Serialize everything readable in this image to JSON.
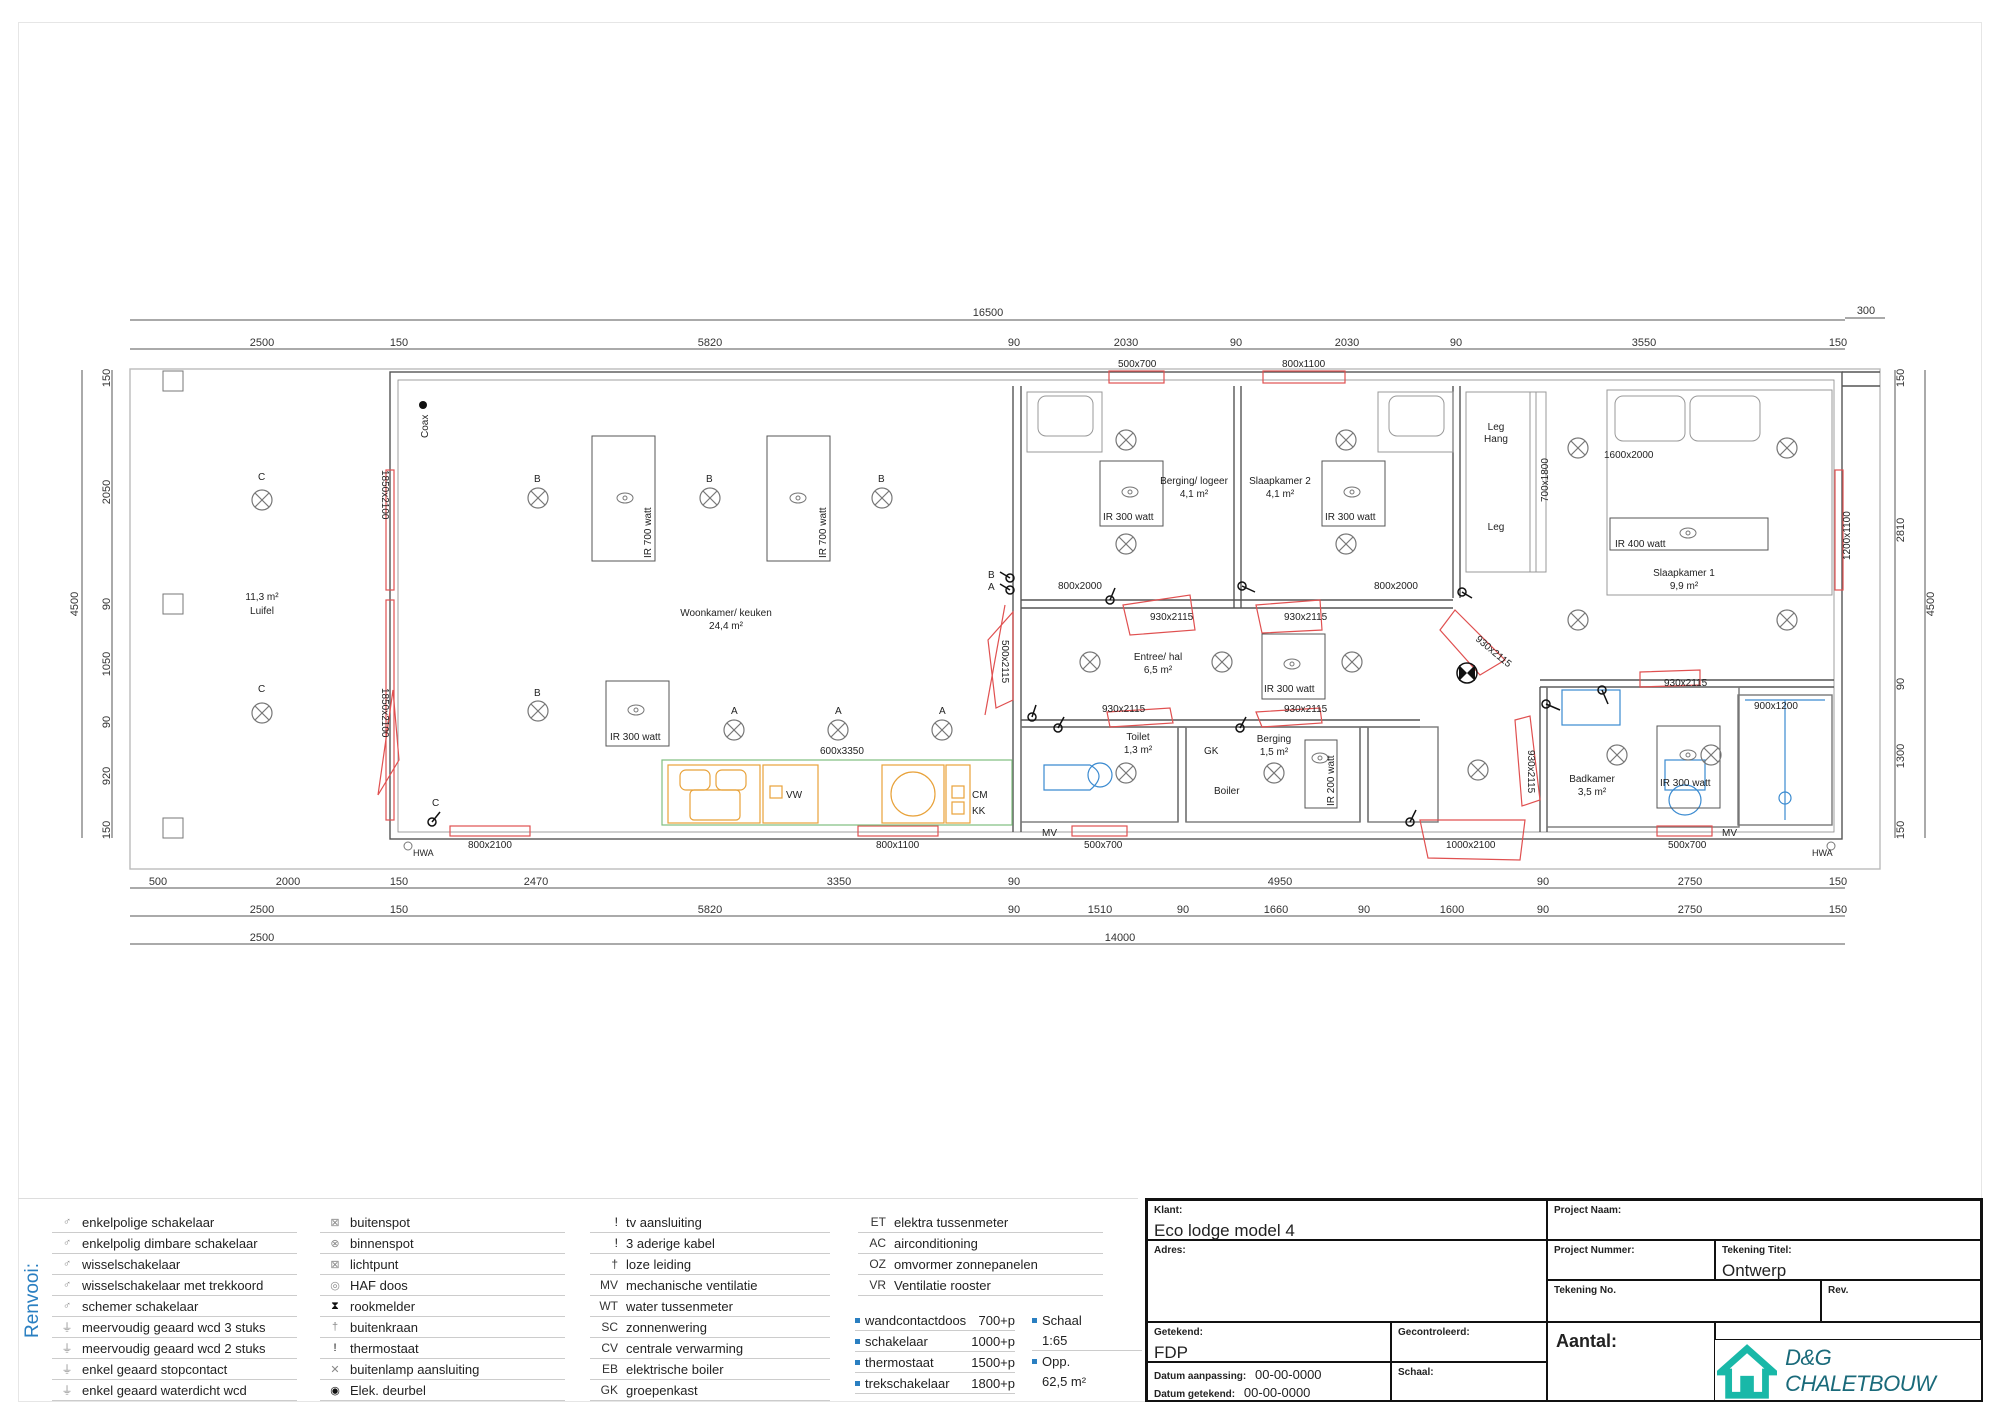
{
  "drawing": {
    "dims_top_total": "16500",
    "dims_top_extra": "300",
    "dims_top_row": [
      "2500",
      "150",
      "5820",
      "90",
      "2030",
      "90",
      "2030",
      "90",
      "3550",
      "150"
    ],
    "dims_bottom_row1": [
      "500",
      "2000",
      "150",
      "2470",
      "3350",
      "90",
      "4950",
      "90",
      "2750",
      "150"
    ],
    "dims_bottom_row2": [
      "2500",
      "150",
      "5820",
      "90",
      "1510",
      "90",
      "1660",
      "90",
      "1600",
      "90",
      "2750",
      "150"
    ],
    "dims_bottom_row3": [
      "2500",
      "14000"
    ],
    "dims_left": [
      "150",
      "2050",
      "90",
      "1050",
      "90",
      "920",
      "150"
    ],
    "dims_left_total": "4500",
    "dims_right": [
      "150",
      "2810",
      "90",
      "1300",
      "150"
    ],
    "dims_right_total": "4500",
    "rooms": {
      "luifel_area": "11,3 m²",
      "luifel_name": "Luifel",
      "woonkamer_name": "Woonkamer/ keuken",
      "woonkamer_area": "24,4 m²",
      "berging_logeer_name": "Berging/ logeer",
      "berging_logeer_area": "4,1 m²",
      "slaapkamer2_name": "Slaapkamer 2",
      "slaapkamer2_area": "4,1 m²",
      "slaapkamer1_name": "Slaapkamer 1",
      "slaapkamer1_area": "9,9 m²",
      "entree_name": "Entree/ hal",
      "entree_area": "6,5 m²",
      "toilet_name": "Toilet",
      "toilet_area": "1,3 m²",
      "berging_name": "Berging",
      "berging_area": "1,5 m²",
      "badkamer_name": "Badkamer",
      "badkamer_area": "3,5 m²",
      "leg_hang": "Leg\nHang",
      "leg": "Leg"
    },
    "labels": {
      "ir300": "IR 300 watt",
      "ir700": "IR 700 watt",
      "ir400": "IR 400 watt",
      "ir200": "IR 200 watt",
      "coax": "Coax",
      "hwa": "HWA",
      "mv": "MV",
      "boiler": "Boiler",
      "gk": "GK",
      "vw": "VW",
      "cm": "CM",
      "kk": "KK",
      "a": "A",
      "b": "B",
      "c": "C",
      "kitchen": "600x3350",
      "w500x700": "500x700",
      "w800x1100": "800x1100",
      "d800x2000": "800x2000",
      "d930x2115": "930x2115",
      "w800x2100": "800x2100",
      "w1850x2100": "1850x2100",
      "w1000x2100": "1000x2100",
      "w1200x1100": "1200x1100",
      "w700x1800": "700x1800",
      "w1600x2000": "1600x2000",
      "w900x1200": "900x1200",
      "d500x2115": "500x2115"
    }
  },
  "legend": {
    "title": "Renvooi:",
    "col1": [
      "enkelpolige schakelaar",
      "enkelpolig dimbare schakelaar",
      "wisselschakelaar",
      "wisselschakelaar met trekkoord",
      "schemer schakelaar",
      "meervoudig geaard wcd 3 stuks",
      "meervoudig geaard wcd 2 stuks",
      "enkel geaard stopcontact",
      "enkel geaard waterdicht wcd"
    ],
    "col2": [
      "buitenspot",
      "binnenspot",
      "lichtpunt",
      "HAF doos",
      "rookmelder",
      "buitenkraan",
      "thermostaat",
      "buitenlamp aansluiting",
      "Elek. deurbel"
    ],
    "col3": [
      {
        "code": "",
        "label": "tv aansluiting"
      },
      {
        "code": "",
        "label": "3 aderige kabel"
      },
      {
        "code": "",
        "label": "loze leiding"
      },
      {
        "code": "MV",
        "label": "mechanische ventilatie"
      },
      {
        "code": "WT",
        "label": "water tussenmeter"
      },
      {
        "code": "SC",
        "label": "zonnenwering"
      },
      {
        "code": "CV",
        "label": "centrale verwarming"
      },
      {
        "code": "EB",
        "label": "elektrische boiler"
      },
      {
        "code": "GK",
        "label": "groepenkast"
      }
    ],
    "col4": [
      {
        "code": "ET",
        "label": "elektra tussenmeter"
      },
      {
        "code": "AC",
        "label": "airconditioning"
      },
      {
        "code": "OZ",
        "label": "omvormer zonnepanelen"
      },
      {
        "code": "VR",
        "label": "Ventilatie rooster"
      }
    ],
    "heights": [
      {
        "label": "wandcontactdoos",
        "value": "700+p"
      },
      {
        "label": "schakelaar",
        "value": "1000+p"
      },
      {
        "label": "thermostaat",
        "value": "1500+p"
      },
      {
        "label": "trekschakelaar",
        "value": "1800+p"
      }
    ],
    "schaal_label": "Schaal",
    "schaal_value": "1:65",
    "opp_label": "Opp.",
    "opp_value": "62,5 m²"
  },
  "titleblock": {
    "klant_label": "Klant:",
    "klant_value": "Eco lodge model 4",
    "adres_label": "Adres:",
    "project_naam_label": "Project Naam:",
    "project_nummer_label": "Project Nummer:",
    "tekening_titel_label": "Tekening Titel:",
    "tekening_titel_value": "Ontwerp",
    "tekening_no_label": "Tekening No.",
    "rev_label": "Rev.",
    "getekend_label": "Getekend:",
    "getekend_value": "FDP",
    "gecontroleerd_label": "Gecontroleerd:",
    "aantal_label": "Aantal:",
    "datum_aanpassing_label": "Datum aanpassing:",
    "datum_aanpassing_value": "00-00-0000",
    "datum_getekend_label": "Datum getekend:",
    "datum_getekend_value": "00-00-0000",
    "schaal_label": "Schaal:",
    "logo_text": "D&G CHALETBOUW",
    "logo_color": "#19b8a8"
  }
}
